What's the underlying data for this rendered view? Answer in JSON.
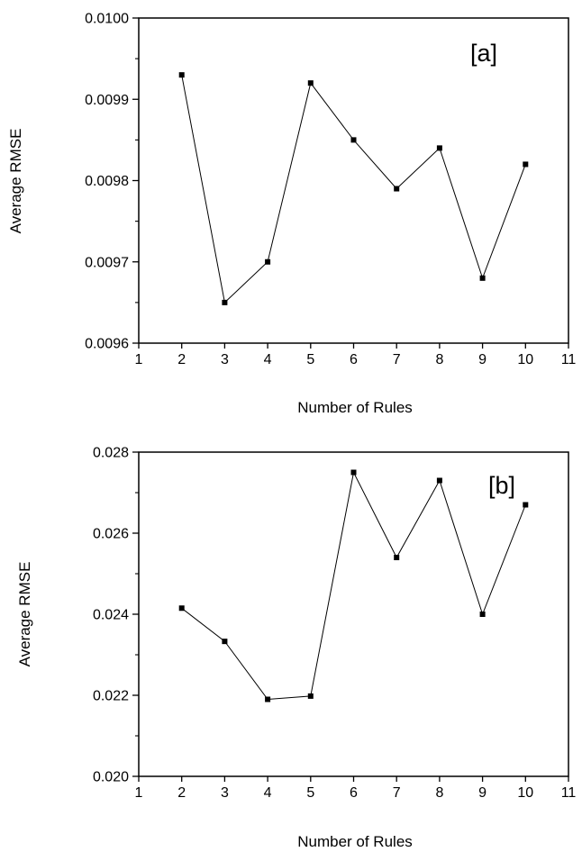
{
  "chart_data": [
    {
      "type": "line",
      "panel_label": "[a]",
      "xlabel": "Number of Rules",
      "ylabel": "Average RMSE",
      "xlim": [
        1,
        11
      ],
      "ylim": [
        0.0096,
        0.01
      ],
      "x_ticks": [
        1,
        2,
        3,
        4,
        5,
        6,
        7,
        8,
        9,
        10,
        11
      ],
      "x_tick_labels": [
        "1",
        "2",
        "3",
        "4",
        "5",
        "6",
        "7",
        "8",
        "9",
        "10",
        "11"
      ],
      "y_ticks": [
        0.0096,
        0.0097,
        0.0098,
        0.0099,
        0.01
      ],
      "y_tick_labels": [
        "0.0096",
        "0.0097",
        "0.0098",
        "0.0099",
        "0.0100"
      ],
      "grid": false,
      "series": [
        {
          "x": [
            2,
            3,
            4,
            5,
            6,
            7,
            8,
            9,
            10
          ],
          "values": [
            0.00993,
            0.00965,
            0.0097,
            0.00992,
            0.00985,
            0.00979,
            0.00984,
            0.00968,
            0.00982
          ]
        }
      ]
    },
    {
      "type": "line",
      "panel_label": "[b]",
      "xlabel": "Number of Rules",
      "ylabel": "Average RMSE",
      "xlim": [
        1,
        11
      ],
      "ylim": [
        0.02,
        0.028
      ],
      "x_ticks": [
        1,
        2,
        3,
        4,
        5,
        6,
        7,
        8,
        9,
        10,
        11
      ],
      "x_tick_labels": [
        "1",
        "2",
        "3",
        "4",
        "5",
        "6",
        "7",
        "8",
        "9",
        "10",
        "11"
      ],
      "y_ticks": [
        0.02,
        0.022,
        0.024,
        0.026,
        0.028
      ],
      "y_tick_labels": [
        "0.020",
        "0.022",
        "0.024",
        "0.026",
        "0.028"
      ],
      "grid": false,
      "series": [
        {
          "x": [
            2,
            3,
            4,
            5,
            6,
            7,
            8,
            9,
            10
          ],
          "values": [
            0.02415,
            0.02333,
            0.0219,
            0.02198,
            0.0275,
            0.0254,
            0.0273,
            0.024,
            0.0267
          ]
        }
      ]
    }
  ]
}
